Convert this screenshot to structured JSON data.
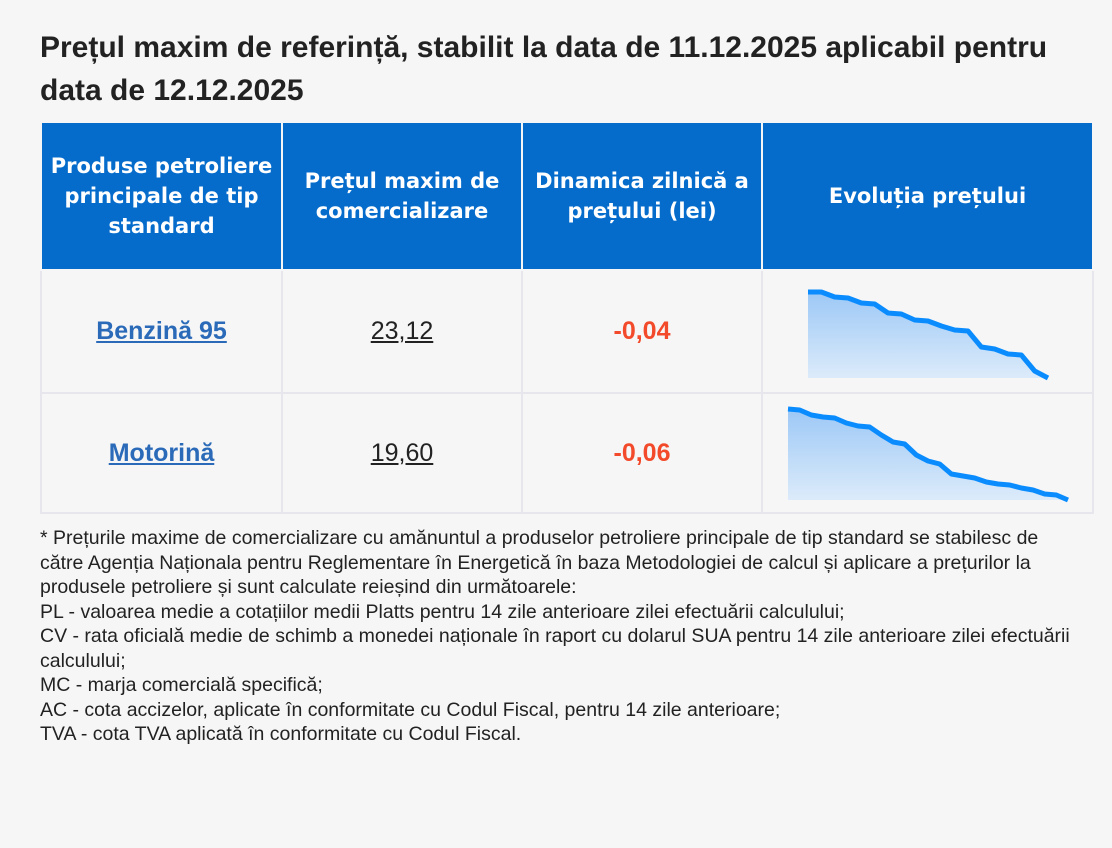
{
  "title": "Prețul maxim de referință, stabilit la data de 11.12.2025 aplicabil pentru data de 12.12.2025",
  "table": {
    "headers": [
      "Produse petroliere principale de tip standard",
      "Prețul maxim de comercializare",
      "Dinamica zilnică a prețului (lei)",
      "Evoluția prețului"
    ],
    "rows": [
      {
        "product": "Benzină 95",
        "price": "23,12",
        "dynamic": "-0,04",
        "trend": [
          86,
          86,
          81,
          80,
          75,
          74,
          65,
          64,
          58,
          57,
          52,
          48,
          47,
          31,
          29,
          24,
          23,
          7,
          0
        ]
      },
      {
        "product": "Motorină",
        "price": "19,60",
        "dynamic": "-0,06",
        "trend": [
          91,
          90,
          85,
          83,
          82,
          77,
          74,
          73,
          65,
          58,
          56,
          45,
          39,
          36,
          26,
          24,
          22,
          18,
          16,
          15,
          12,
          10,
          6,
          5,
          0
        ]
      }
    ]
  },
  "colors": {
    "header": "#066ccc",
    "dynamic_negative": "#f24a2a",
    "link": "#2a6ab8",
    "sparkline": "#0a8cff"
  },
  "notes": [
    "* Prețurile maxime de comercializare cu amănuntul a produselor petroliere principale de tip standard se stabilesc de către Agenția Naționala pentru Reglementare în Energetică în baza Metodologiei de calcul și aplicare a prețurilor la produsele petroliere și sunt calculate reieșind din următoarele:",
    "PL - valoarea medie a cotațiilor medii Platts pentru 14 zile anterioare zilei efectuării calculului;",
    "CV - rata oficială medie de schimb a monedei naționale în raport cu dolarul SUA pentru 14 zile anterioare zilei efectuării calculului;",
    "MC - marja comercială specifică;",
    "AC - cota accizelor, aplicate în conformitate cu Codul Fiscal, pentru 14 zile anterioare;",
    "TVA - cota TVA aplicată în conformitate cu Codul Fiscal."
  ]
}
